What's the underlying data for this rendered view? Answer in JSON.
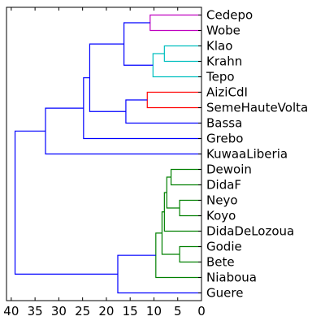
{
  "chart_data": {
    "type": "dendrogram",
    "orientation": "left",
    "title": "",
    "xlabel": "",
    "ylabel": "",
    "xlim": [
      41,
      0
    ],
    "x_ticks": [
      40,
      35,
      30,
      25,
      20,
      15,
      10,
      5,
      0
    ],
    "grid": false,
    "leaves": [
      "Cedepo",
      "Wobe",
      "Klao",
      "Krahn",
      "Tepo",
      "AiziCdI",
      "SemeHauteVolta",
      "Bassa",
      "Grebo",
      "KuwaaLiberia",
      "Dewoin",
      "DidaF",
      "Neyo",
      "Koyo",
      "DidaDeLozoua",
      "Godie",
      "Bete",
      "Niaboua",
      "Guere"
    ],
    "merges": [
      {
        "height": 10.8,
        "left": "Cedepo",
        "right": "Wobe",
        "color": "#bf00bf"
      },
      {
        "height": 7.8,
        "left": "Klao",
        "right": "Krahn",
        "color": "#00bfbf"
      },
      {
        "height": 10.2,
        "left": "Klao+Krahn",
        "right": "Tepo",
        "color": "#00bfbf"
      },
      {
        "height": 16.3,
        "left": "Cedepo+Wobe",
        "right": "Klao+Krahn+Tepo",
        "color": "#0000ff"
      },
      {
        "height": 11.4,
        "left": "AiziCdI",
        "right": "SemeHauteVolta",
        "color": "#ff0000"
      },
      {
        "height": 15.9,
        "left": "AiziCdI+SemeHauteVolta",
        "right": "Bassa",
        "color": "#0000ff"
      },
      {
        "height": 23.5,
        "left": "Cedepo..Tepo",
        "right": "AiziCdI..Bassa",
        "color": "#0000ff"
      },
      {
        "height": 24.8,
        "left": "Cedepo..Bassa",
        "right": "Grebo",
        "color": "#0000ff"
      },
      {
        "height": 32.8,
        "left": "Cedepo..Grebo",
        "right": "KuwaaLiberia",
        "color": "#0000ff"
      },
      {
        "height": 6.4,
        "left": "Dewoin",
        "right": "DidaF",
        "color": "#008000"
      },
      {
        "height": 4.6,
        "left": "Neyo",
        "right": "Koyo",
        "color": "#008000"
      },
      {
        "height": 7.3,
        "left": "Dewoin+DidaF",
        "right": "Neyo+Koyo",
        "color": "#008000"
      },
      {
        "height": 4.6,
        "left": "Godie",
        "right": "Bete",
        "color": "#008000"
      },
      {
        "height": 7.8,
        "left": "Dewoin..Koyo",
        "right": "DidaDeLozoua",
        "color": "#008000"
      },
      {
        "height": 8.3,
        "left": "Dewoin..DidaDeLozoua",
        "right": "Godie+Bete",
        "color": "#008000"
      },
      {
        "height": 9.6,
        "left": "Dewoin..Bete",
        "right": "Niaboua",
        "color": "#008000"
      },
      {
        "height": 17.6,
        "left": "Dewoin..Niaboua",
        "right": "Guere",
        "color": "#0000ff"
      },
      {
        "height": 39.2,
        "left": "Cedepo..KuwaaLiberia",
        "right": "Dewoin..Guere",
        "color": "#0000ff"
      }
    ]
  }
}
